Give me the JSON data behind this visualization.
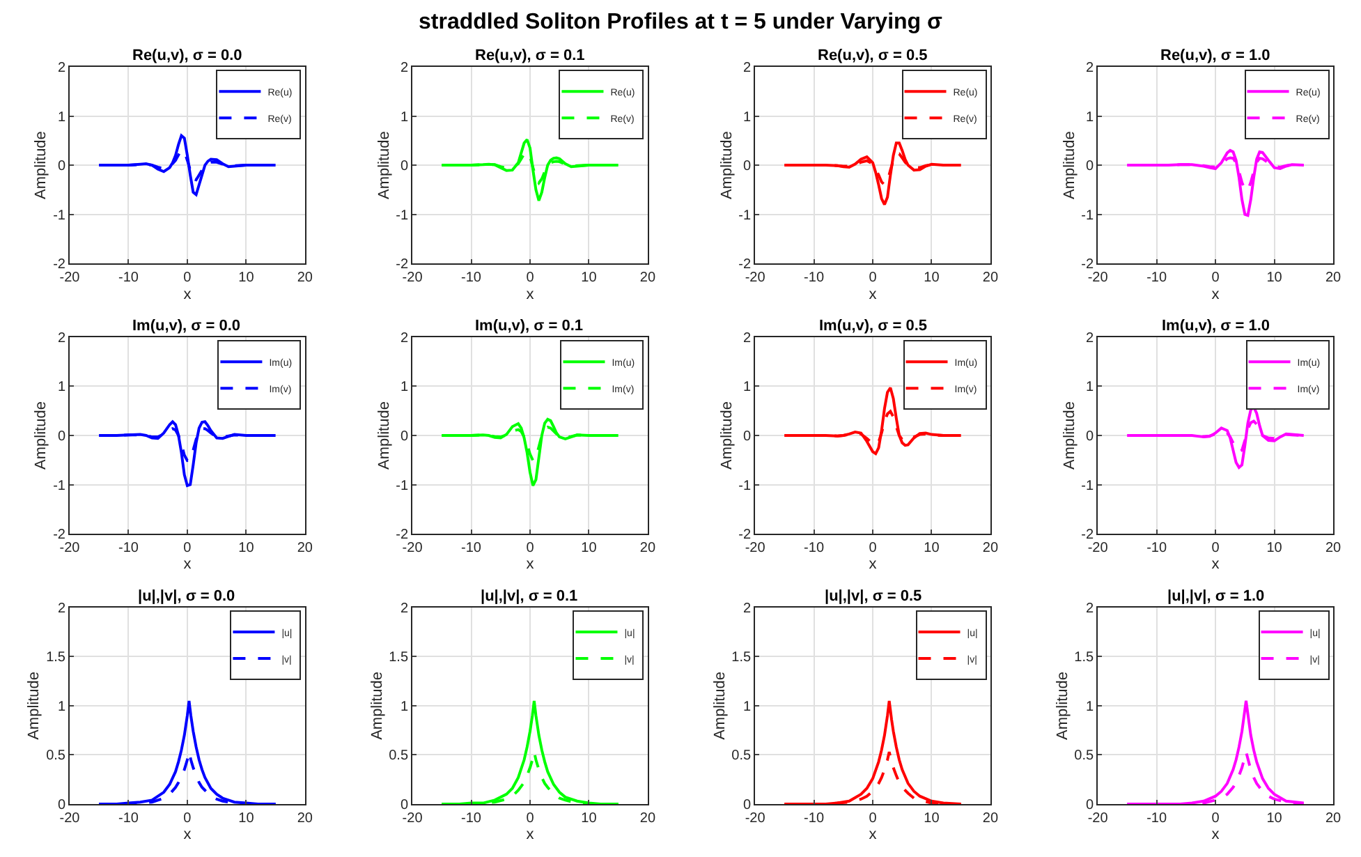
{
  "chart_data": [
    {
      "type": "other",
      "title": "straddled Soliton Profiles at t = 5 under Varying σ"
    },
    {
      "type": "line",
      "title": "Re(u,v), σ = 0.0",
      "xlabel": "x",
      "ylabel": "Amplitude",
      "xlim": [
        -20,
        20
      ],
      "xticks": [
        -20,
        -10,
        0,
        10,
        20
      ],
      "ylim": [
        -2,
        2
      ],
      "yticks": [
        -2,
        -1,
        0,
        1,
        2
      ],
      "grid": true,
      "legend": "top right",
      "marker": "none",
      "x": [
        -15,
        -12,
        -10,
        -8,
        -7,
        -6,
        -5,
        -4,
        -3,
        -2.5,
        -2,
        -1.5,
        -1,
        -0.5,
        0,
        0.5,
        1,
        1.5,
        2,
        2.5,
        3,
        3.5,
        4,
        5,
        6,
        7,
        8,
        10,
        12,
        15
      ],
      "series": [
        {
          "name": "Re(u)",
          "color": "#0000ff",
          "line_style": "solid",
          "values": [
            0,
            0,
            0,
            0.02,
            0.03,
            0,
            -0.08,
            -0.13,
            -0.05,
            0.05,
            0.2,
            0.42,
            0.6,
            0.55,
            0.2,
            -0.2,
            -0.55,
            -0.6,
            -0.4,
            -0.2,
            0,
            0.08,
            0.12,
            0.11,
            0.03,
            -0.03,
            -0.02,
            0,
            0,
            0
          ]
        },
        {
          "name": "Re(v)",
          "color": "#0000ff",
          "line_style": "dashed",
          "values": [
            0,
            0,
            0,
            0.01,
            0.02,
            0,
            -0.04,
            -0.07,
            -0.03,
            0.03,
            0.1,
            0.21,
            0.3,
            0.28,
            0.1,
            -0.1,
            -0.28,
            -0.3,
            -0.2,
            -0.1,
            0,
            0.04,
            0.06,
            0.06,
            0.02,
            -0.02,
            -0.01,
            0,
            0,
            0
          ]
        }
      ]
    },
    {
      "type": "line",
      "title": "Re(u,v), σ = 0.1",
      "xlabel": "x",
      "ylabel": "Amplitude",
      "xlim": [
        -20,
        20
      ],
      "xticks": [
        -20,
        -10,
        0,
        10,
        20
      ],
      "ylim": [
        -2,
        2
      ],
      "yticks": [
        -2,
        -1,
        0,
        1,
        2
      ],
      "grid": true,
      "legend": "top right",
      "marker": "none",
      "x": [
        -15,
        -12,
        -10,
        -8,
        -7,
        -6,
        -5,
        -4,
        -3,
        -2,
        -1.5,
        -1,
        -0.5,
        0,
        0.5,
        1,
        1.5,
        2,
        2.5,
        3,
        3.5,
        4,
        4.5,
        5,
        6,
        7,
        8,
        10,
        12,
        15
      ],
      "series": [
        {
          "name": "Re(u)",
          "color": "#00ff00",
          "line_style": "solid",
          "values": [
            0,
            0,
            0,
            0.01,
            0.02,
            0.01,
            -0.05,
            -0.11,
            -0.1,
            0.05,
            0.25,
            0.45,
            0.52,
            0.35,
            -0.1,
            -0.5,
            -0.72,
            -0.55,
            -0.25,
            0,
            0.1,
            0.14,
            0.15,
            0.13,
            0.03,
            -0.03,
            -0.02,
            0,
            0,
            0
          ]
        },
        {
          "name": "Re(v)",
          "color": "#00ff00",
          "line_style": "dashed",
          "values": [
            0,
            0,
            0,
            0.01,
            0.01,
            0.01,
            -0.03,
            -0.06,
            -0.05,
            0.03,
            0.13,
            0.23,
            0.26,
            0.18,
            -0.05,
            -0.25,
            -0.36,
            -0.28,
            -0.13,
            0,
            0.05,
            0.07,
            0.08,
            0.07,
            0.02,
            -0.02,
            -0.01,
            0,
            0,
            0
          ]
        }
      ]
    },
    {
      "type": "line",
      "title": "Re(u,v), σ = 0.5",
      "xlabel": "x",
      "ylabel": "Amplitude",
      "xlim": [
        -20,
        20
      ],
      "xticks": [
        -20,
        -10,
        0,
        10,
        20
      ],
      "ylim": [
        -2,
        2
      ],
      "yticks": [
        -2,
        -1,
        0,
        1,
        2
      ],
      "grid": true,
      "legend": "top right",
      "marker": "none",
      "x": [
        -15,
        -12,
        -10,
        -8,
        -6,
        -5,
        -4,
        -3,
        -2,
        -1,
        0,
        0.5,
        1,
        1.5,
        2,
        2.5,
        3,
        3.5,
        4,
        4.5,
        5,
        5.5,
        6,
        7,
        8,
        9,
        10,
        12,
        15
      ],
      "series": [
        {
          "name": "Re(u)",
          "color": "#ff0000",
          "line_style": "solid",
          "values": [
            0,
            0,
            0,
            0,
            -0.01,
            -0.03,
            -0.04,
            0.02,
            0.12,
            0.17,
            0.05,
            -0.15,
            -0.4,
            -0.68,
            -0.8,
            -0.65,
            -0.2,
            0.2,
            0.45,
            0.45,
            0.3,
            0.12,
            0,
            -0.1,
            -0.09,
            -0.02,
            0.02,
            0,
            0
          ]
        },
        {
          "name": "Re(v)",
          "color": "#ff0000",
          "line_style": "dashed",
          "values": [
            0,
            0,
            0,
            0,
            -0.01,
            -0.02,
            -0.02,
            0.01,
            0.06,
            0.09,
            0.03,
            -0.08,
            -0.2,
            -0.34,
            -0.4,
            -0.33,
            -0.1,
            0.1,
            0.23,
            0.23,
            0.15,
            0.06,
            0,
            -0.05,
            -0.05,
            -0.01,
            0.01,
            0,
            0
          ]
        }
      ]
    },
    {
      "type": "line",
      "title": "Re(u,v), σ = 1.0",
      "xlabel": "x",
      "ylabel": "Amplitude",
      "xlim": [
        -20,
        20
      ],
      "xticks": [
        -20,
        -10,
        0,
        10,
        20
      ],
      "ylim": [
        -2,
        2
      ],
      "yticks": [
        -2,
        -1,
        0,
        1,
        2
      ],
      "grid": true,
      "legend": "top right",
      "marker": "none",
      "x": [
        -15,
        -12,
        -10,
        -8,
        -6,
        -4,
        -2,
        -1,
        0,
        1,
        2,
        2.5,
        3,
        3.5,
        4,
        4.5,
        5,
        5.5,
        6,
        6.5,
        7,
        7.5,
        8,
        9,
        10,
        11,
        12,
        13,
        15
      ],
      "series": [
        {
          "name": "Re(u)",
          "color": "#ff00ff",
          "line_style": "solid",
          "values": [
            0,
            0,
            0,
            0,
            0.01,
            0.01,
            -0.02,
            -0.05,
            -0.07,
            0.05,
            0.25,
            0.3,
            0.27,
            0.1,
            -0.25,
            -0.7,
            -1.0,
            -1.02,
            -0.7,
            -0.25,
            0.12,
            0.27,
            0.26,
            0.1,
            -0.05,
            -0.07,
            -0.02,
            0.01,
            0
          ]
        },
        {
          "name": "Re(v)",
          "color": "#ff00ff",
          "line_style": "dashed",
          "values": [
            0,
            0,
            0,
            0,
            0.01,
            0.01,
            -0.01,
            -0.03,
            -0.04,
            0.03,
            0.13,
            0.15,
            0.14,
            0.05,
            -0.13,
            -0.35,
            -0.5,
            -0.51,
            -0.35,
            -0.13,
            0.06,
            0.14,
            0.13,
            0.05,
            -0.03,
            -0.04,
            -0.01,
            0.01,
            0
          ]
        }
      ]
    },
    {
      "type": "line",
      "title": "Im(u,v), σ = 0.0",
      "xlabel": "x",
      "ylabel": "Amplitude",
      "xlim": [
        -20,
        20
      ],
      "xticks": [
        -20,
        -10,
        0,
        10,
        20
      ],
      "ylim": [
        -2,
        2
      ],
      "yticks": [
        -2,
        -1,
        0,
        1,
        2
      ],
      "grid": true,
      "legend": "top right",
      "marker": "none",
      "x": [
        -15,
        -12,
        -10,
        -8,
        -7,
        -6,
        -5,
        -4,
        -3,
        -2.5,
        -2,
        -1.5,
        -1,
        -0.5,
        0,
        0.5,
        1,
        1.5,
        2,
        2.5,
        3,
        3.5,
        4,
        5,
        6,
        7,
        8,
        10,
        12,
        15
      ],
      "series": [
        {
          "name": "Im(u)",
          "color": "#0000ff",
          "line_style": "solid",
          "values": [
            0,
            0,
            0.01,
            0.02,
            0,
            -0.05,
            -0.06,
            0.05,
            0.22,
            0.28,
            0.22,
            0,
            -0.35,
            -0.8,
            -1.02,
            -1.0,
            -0.6,
            -0.15,
            0.15,
            0.27,
            0.28,
            0.2,
            0.1,
            -0.05,
            -0.06,
            -0.02,
            0.02,
            0,
            0,
            0
          ]
        },
        {
          "name": "Im(v)",
          "color": "#0000ff",
          "line_style": "dashed",
          "values": [
            0,
            0,
            0.01,
            0.01,
            0,
            -0.03,
            -0.03,
            0.03,
            0.11,
            0.14,
            0.11,
            0,
            -0.18,
            -0.4,
            -0.51,
            -0.5,
            -0.3,
            -0.08,
            0.08,
            0.14,
            0.14,
            0.1,
            0.05,
            -0.03,
            -0.03,
            -0.01,
            0.01,
            0,
            0,
            0
          ]
        }
      ]
    },
    {
      "type": "line",
      "title": "Im(u,v), σ = 0.1",
      "xlabel": "x",
      "ylabel": "Amplitude",
      "xlim": [
        -20,
        20
      ],
      "xticks": [
        -20,
        -10,
        0,
        10,
        20
      ],
      "ylim": [
        -2,
        2
      ],
      "yticks": [
        -2,
        -1,
        0,
        1,
        2
      ],
      "grid": true,
      "legend": "top right",
      "marker": "none",
      "x": [
        -15,
        -12,
        -10,
        -8,
        -7,
        -6,
        -5,
        -4,
        -3,
        -2,
        -1.5,
        -1,
        -0.5,
        0,
        0.5,
        1,
        1.5,
        2,
        2.5,
        3,
        3.5,
        4,
        4.5,
        5,
        6,
        7,
        8,
        10,
        12,
        15
      ],
      "series": [
        {
          "name": "Im(u)",
          "color": "#00ff00",
          "line_style": "solid",
          "values": [
            0,
            0,
            0,
            0.01,
            0,
            -0.04,
            -0.05,
            0.02,
            0.18,
            0.24,
            0.15,
            -0.05,
            -0.35,
            -0.75,
            -1.02,
            -0.9,
            -0.45,
            0,
            0.25,
            0.33,
            0.3,
            0.18,
            0.05,
            -0.03,
            -0.07,
            -0.03,
            0.01,
            0,
            0,
            0
          ]
        },
        {
          "name": "Im(v)",
          "color": "#00ff00",
          "line_style": "dashed",
          "values": [
            0,
            0,
            0,
            0.01,
            0,
            -0.02,
            -0.03,
            0.01,
            0.09,
            0.12,
            0.08,
            -0.03,
            -0.18,
            -0.38,
            -0.51,
            -0.45,
            -0.23,
            0,
            0.13,
            0.17,
            0.15,
            0.09,
            0.03,
            -0.02,
            -0.04,
            -0.02,
            0.01,
            0,
            0,
            0
          ]
        }
      ]
    },
    {
      "type": "line",
      "title": "Im(u,v), σ = 0.5",
      "xlabel": "x",
      "ylabel": "Amplitude",
      "xlim": [
        -20,
        20
      ],
      "xticks": [
        -20,
        -10,
        0,
        10,
        20
      ],
      "ylim": [
        -2,
        2
      ],
      "yticks": [
        -2,
        -1,
        0,
        1,
        2
      ],
      "grid": true,
      "legend": "top right",
      "marker": "none",
      "x": [
        -15,
        -12,
        -10,
        -8,
        -6,
        -5,
        -4,
        -3,
        -2,
        -1,
        0,
        0.5,
        1,
        1.5,
        2,
        2.5,
        3,
        3.5,
        4,
        4.5,
        5,
        5.5,
        6,
        7,
        8,
        9,
        10,
        12,
        15
      ],
      "series": [
        {
          "name": "Im(u)",
          "color": "#ff0000",
          "line_style": "solid",
          "values": [
            0,
            0,
            0,
            0,
            -0.01,
            0,
            0.03,
            0.07,
            0.05,
            -0.12,
            -0.33,
            -0.37,
            -0.25,
            0.1,
            0.55,
            0.88,
            0.97,
            0.75,
            0.35,
            0,
            -0.15,
            -0.2,
            -0.19,
            -0.05,
            0.04,
            0.05,
            0.02,
            0,
            0
          ]
        },
        {
          "name": "Im(v)",
          "color": "#ff0000",
          "line_style": "dashed",
          "values": [
            0,
            0,
            0,
            0,
            -0.01,
            0,
            0.02,
            0.04,
            0.03,
            -0.06,
            -0.17,
            -0.19,
            -0.13,
            0.05,
            0.28,
            0.44,
            0.49,
            0.38,
            0.18,
            0,
            -0.08,
            -0.1,
            -0.1,
            -0.03,
            0.02,
            0.03,
            0.01,
            0,
            0
          ]
        }
      ]
    },
    {
      "type": "line",
      "title": "Im(u,v), σ = 1.0",
      "xlabel": "x",
      "ylabel": "Amplitude",
      "xlim": [
        -20,
        20
      ],
      "xticks": [
        -20,
        -10,
        0,
        10,
        20
      ],
      "ylim": [
        -2,
        2
      ],
      "yticks": [
        -2,
        -1,
        0,
        1,
        2
      ],
      "grid": true,
      "legend": "top right",
      "marker": "none",
      "x": [
        -15,
        -12,
        -10,
        -8,
        -6,
        -4,
        -2,
        -1,
        0,
        1,
        2,
        2.5,
        3,
        3.5,
        4,
        4.5,
        5,
        5.5,
        6,
        6.5,
        7,
        7.5,
        8,
        9,
        10,
        11,
        12,
        13,
        15
      ],
      "series": [
        {
          "name": "Im(u)",
          "color": "#ff00ff",
          "line_style": "solid",
          "values": [
            0,
            0,
            0,
            0,
            0,
            0,
            -0.03,
            -0.02,
            0.05,
            0.15,
            0.1,
            -0.05,
            -0.3,
            -0.55,
            -0.65,
            -0.6,
            -0.2,
            0.25,
            0.52,
            0.58,
            0.45,
            0.2,
            0,
            -0.1,
            -0.11,
            -0.03,
            0.03,
            0.02,
            0
          ]
        },
        {
          "name": "Im(v)",
          "color": "#ff00ff",
          "line_style": "dashed",
          "values": [
            0,
            0,
            0,
            0,
            0,
            0,
            -0.02,
            -0.01,
            0.03,
            0.08,
            0.05,
            -0.03,
            -0.15,
            -0.28,
            -0.33,
            -0.3,
            -0.1,
            0.13,
            0.26,
            0.29,
            0.23,
            0.1,
            0,
            -0.05,
            -0.06,
            -0.02,
            0.02,
            0.01,
            0
          ]
        }
      ]
    },
    {
      "type": "line",
      "title": "|u|,|v|, σ = 0.0",
      "xlabel": "x",
      "ylabel": "Amplitude",
      "xlim": [
        -20,
        20
      ],
      "xticks": [
        -20,
        -10,
        0,
        10,
        20
      ],
      "ylim": [
        0,
        2
      ],
      "yticks": [
        0,
        0.5,
        1,
        1.5,
        2
      ],
      "grid": true,
      "legend": "top right",
      "marker": "none",
      "x": [
        -15,
        -12,
        -10,
        -8,
        -6,
        -4,
        -3,
        -2,
        -1.5,
        -1,
        -0.5,
        0,
        0.3,
        0.6,
        1,
        1.5,
        2,
        2.5,
        3,
        4,
        5,
        6,
        8,
        10,
        12,
        15
      ],
      "series": [
        {
          "name": "|u|",
          "color": "#0000ff",
          "line_style": "solid",
          "values": [
            0,
            0,
            0.01,
            0.02,
            0.04,
            0.12,
            0.2,
            0.33,
            0.43,
            0.55,
            0.7,
            0.9,
            1.05,
            0.9,
            0.74,
            0.58,
            0.45,
            0.35,
            0.27,
            0.16,
            0.1,
            0.06,
            0.02,
            0.01,
            0,
            0
          ]
        },
        {
          "name": "|v|",
          "color": "#0000ff",
          "line_style": "dashed",
          "values": [
            0,
            0,
            0,
            0.01,
            0.02,
            0.06,
            0.1,
            0.17,
            0.22,
            0.28,
            0.35,
            0.45,
            0.53,
            0.45,
            0.37,
            0.29,
            0.22,
            0.17,
            0.14,
            0.08,
            0.05,
            0.03,
            0.01,
            0,
            0,
            0
          ]
        }
      ]
    },
    {
      "type": "line",
      "title": "|u|,|v|, σ = 0.1",
      "xlabel": "x",
      "ylabel": "Amplitude",
      "xlim": [
        -20,
        20
      ],
      "xticks": [
        -20,
        -10,
        0,
        10,
        20
      ],
      "ylim": [
        0,
        2
      ],
      "yticks": [
        0,
        0.5,
        1,
        1.5,
        2
      ],
      "grid": true,
      "legend": "top right",
      "marker": "none",
      "x": [
        -15,
        -12,
        -10,
        -8,
        -6,
        -4,
        -3,
        -2,
        -1,
        -0.5,
        0,
        0.4,
        0.7,
        1,
        1.5,
        2,
        2.5,
        3,
        4,
        5,
        6,
        8,
        10,
        12,
        15
      ],
      "series": [
        {
          "name": "|u|",
          "color": "#00ff00",
          "line_style": "solid",
          "values": [
            0,
            0,
            0.01,
            0.01,
            0.04,
            0.1,
            0.16,
            0.27,
            0.45,
            0.58,
            0.74,
            0.9,
            1.05,
            0.9,
            0.7,
            0.55,
            0.43,
            0.33,
            0.2,
            0.12,
            0.07,
            0.03,
            0.01,
            0,
            0
          ]
        },
        {
          "name": "|v|",
          "color": "#00ff00",
          "line_style": "dashed",
          "values": [
            0,
            0,
            0,
            0.01,
            0.02,
            0.05,
            0.08,
            0.14,
            0.22,
            0.29,
            0.37,
            0.45,
            0.53,
            0.45,
            0.35,
            0.27,
            0.21,
            0.17,
            0.1,
            0.06,
            0.04,
            0.01,
            0,
            0,
            0
          ]
        }
      ]
    },
    {
      "type": "line",
      "title": "|u|,|v|, σ = 0.5",
      "xlabel": "x",
      "ylabel": "Amplitude",
      "xlim": [
        -20,
        20
      ],
      "xticks": [
        -20,
        -10,
        0,
        10,
        20
      ],
      "ylim": [
        0,
        2
      ],
      "yticks": [
        0,
        0.5,
        1,
        1.5,
        2
      ],
      "grid": true,
      "legend": "top right",
      "marker": "none",
      "x": [
        -15,
        -12,
        -10,
        -8,
        -6,
        -4,
        -2,
        -1,
        0,
        1,
        1.5,
        2,
        2.5,
        2.8,
        3.2,
        3.5,
        4,
        4.5,
        5,
        6,
        7,
        8,
        10,
        12,
        15
      ],
      "series": [
        {
          "name": "|u|",
          "color": "#ff0000",
          "line_style": "solid",
          "values": [
            0,
            0,
            0,
            0,
            0.01,
            0.03,
            0.1,
            0.16,
            0.26,
            0.43,
            0.55,
            0.7,
            0.9,
            1.05,
            0.86,
            0.74,
            0.58,
            0.45,
            0.35,
            0.21,
            0.13,
            0.08,
            0.03,
            0.01,
            0
          ]
        },
        {
          "name": "|v|",
          "color": "#ff0000",
          "line_style": "dashed",
          "values": [
            0,
            0,
            0,
            0,
            0.01,
            0.02,
            0.05,
            0.08,
            0.13,
            0.21,
            0.27,
            0.35,
            0.45,
            0.53,
            0.43,
            0.37,
            0.29,
            0.22,
            0.17,
            0.11,
            0.06,
            0.04,
            0.01,
            0,
            0
          ]
        }
      ]
    },
    {
      "type": "line",
      "title": "|u|,|v|, σ = 1.0",
      "xlabel": "x",
      "ylabel": "Amplitude",
      "xlim": [
        -20,
        20
      ],
      "xticks": [
        -20,
        -10,
        0,
        10,
        20
      ],
      "ylim": [
        0,
        2
      ],
      "yticks": [
        0,
        0.5,
        1,
        1.5,
        2
      ],
      "grid": true,
      "legend": "top right",
      "marker": "none",
      "x": [
        -15,
        -12,
        -10,
        -8,
        -6,
        -4,
        -2,
        0,
        1,
        2,
        3,
        3.5,
        4,
        4.5,
        5.2,
        6,
        6.5,
        7,
        8,
        9,
        10,
        12,
        15
      ],
      "series": [
        {
          "name": "|u|",
          "color": "#ff00ff",
          "line_style": "solid",
          "values": [
            0,
            0,
            0,
            0,
            0,
            0.01,
            0.03,
            0.08,
            0.13,
            0.21,
            0.35,
            0.45,
            0.58,
            0.74,
            1.05,
            0.7,
            0.55,
            0.43,
            0.26,
            0.16,
            0.1,
            0.03,
            0.01
          ]
        },
        {
          "name": "|v|",
          "color": "#ff00ff",
          "line_style": "dashed",
          "values": [
            0,
            0,
            0,
            0,
            0,
            0,
            0.01,
            0.04,
            0.06,
            0.1,
            0.17,
            0.22,
            0.29,
            0.37,
            0.53,
            0.35,
            0.27,
            0.21,
            0.13,
            0.08,
            0.05,
            0.02,
            0
          ]
        }
      ]
    }
  ]
}
